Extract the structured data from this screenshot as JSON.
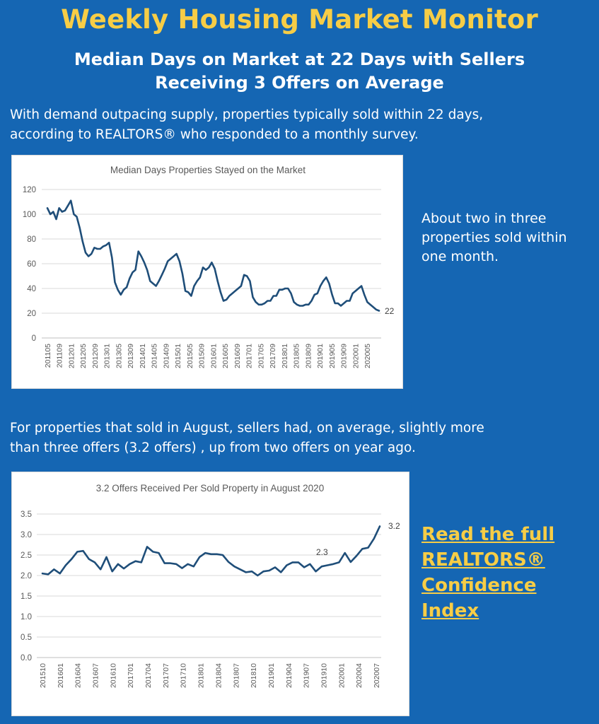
{
  "header": {
    "title": "Weekly Housing Market Monitor",
    "subtitle_line1": "Median Days on Market at 22 Days with Sellers",
    "subtitle_line2": "Receiving 3 Offers on Average"
  },
  "intro": {
    "line1": "With demand outpacing supply, properties typically sold within 22 days,",
    "line2": "according to REALTORS® who responded to a monthly survey."
  },
  "side_note": {
    "line1": "About two in three",
    "line2": "properties sold within",
    "line3": "one month."
  },
  "mid_text": {
    "line1": "For properties that sold in August, sellers had, on average, slightly more",
    "line2": "than three offers (3.2 offers) , up from  two offers on  year ago."
  },
  "cta": {
    "line1": "Read the full",
    "line2": "REALTORS®",
    "line3": "Confidence",
    "line4": "Index"
  },
  "colors": {
    "background": "#1566b3",
    "accent": "#f7cd46",
    "line": "#1f4e79"
  },
  "chart_data": [
    {
      "type": "line",
      "title": "Median Days Properties Stayed on the Market",
      "xlabel": "",
      "ylabel": "",
      "ylim": [
        0,
        120
      ],
      "yticks": [
        0,
        20,
        40,
        60,
        80,
        100,
        120
      ],
      "grid": true,
      "xtick_labels": [
        "201105",
        "201109",
        "201201",
        "201205",
        "201209",
        "201301",
        "201305",
        "201309",
        "201401",
        "201405",
        "201409",
        "201501",
        "201505",
        "201509",
        "201601",
        "201605",
        "201609",
        "201701",
        "201705",
        "201709",
        "201801",
        "201805",
        "201809",
        "201901",
        "201905",
        "201909",
        "202001",
        "202005"
      ],
      "end_label": "22",
      "series": [
        {
          "values": [
            105,
            100,
            102,
            96,
            105,
            102,
            103,
            107,
            111,
            100,
            98,
            89,
            78,
            69,
            66,
            68,
            73,
            72,
            72,
            74,
            75,
            77,
            65,
            45,
            39,
            35,
            39,
            41,
            48,
            53,
            55,
            70,
            66,
            61,
            55,
            46,
            44,
            42,
            46,
            51,
            56,
            62,
            64,
            66,
            68,
            62,
            52,
            38,
            37,
            34,
            42,
            46,
            49,
            57,
            55,
            57,
            61,
            56,
            46,
            37,
            30,
            31,
            34,
            36,
            38,
            40,
            42,
            51,
            50,
            46,
            33,
            29,
            27,
            27,
            28,
            30,
            30,
            34,
            34,
            39,
            39,
            40,
            40,
            36,
            29,
            27,
            26,
            26,
            27,
            27,
            30,
            35,
            36,
            42,
            46,
            49,
            44,
            35,
            28,
            28,
            26,
            28,
            30,
            30,
            36,
            38,
            40,
            42,
            35,
            29,
            27,
            25,
            23,
            22
          ]
        }
      ]
    },
    {
      "type": "line",
      "title": "3.2 Offers Received Per Sold Property in August 2020",
      "xlabel": "",
      "ylabel": "",
      "ylim": [
        0.0,
        3.5
      ],
      "yticks": [
        "0.0",
        "0.5",
        "1.0",
        "1.5",
        "2.0",
        "2.5",
        "3.0",
        "3.5"
      ],
      "grid": true,
      "xtick_labels": [
        "201510",
        "201601",
        "201604",
        "201607",
        "201610",
        "201701",
        "201704",
        "201707",
        "201710",
        "201801",
        "201804",
        "201807",
        "201810",
        "201901",
        "201904",
        "201907",
        "201910",
        "202001",
        "202004",
        "202007"
      ],
      "annotations": [
        "2.3",
        "3.2"
      ],
      "series": [
        {
          "values": [
            2.05,
            2.03,
            2.15,
            2.05,
            2.25,
            2.4,
            2.58,
            2.6,
            2.4,
            2.32,
            2.15,
            2.45,
            2.1,
            2.28,
            2.17,
            2.28,
            2.35,
            2.32,
            2.7,
            2.58,
            2.55,
            2.3,
            2.3,
            2.28,
            2.18,
            2.28,
            2.22,
            2.45,
            2.55,
            2.52,
            2.52,
            2.5,
            2.33,
            2.22,
            2.15,
            2.08,
            2.1,
            2.0,
            2.1,
            2.12,
            2.2,
            2.08,
            2.25,
            2.32,
            2.32,
            2.2,
            2.28,
            2.1,
            2.22,
            2.25,
            2.28,
            2.32,
            2.55,
            2.33,
            2.48,
            2.65,
            2.68,
            2.9,
            3.2
          ]
        }
      ]
    }
  ]
}
